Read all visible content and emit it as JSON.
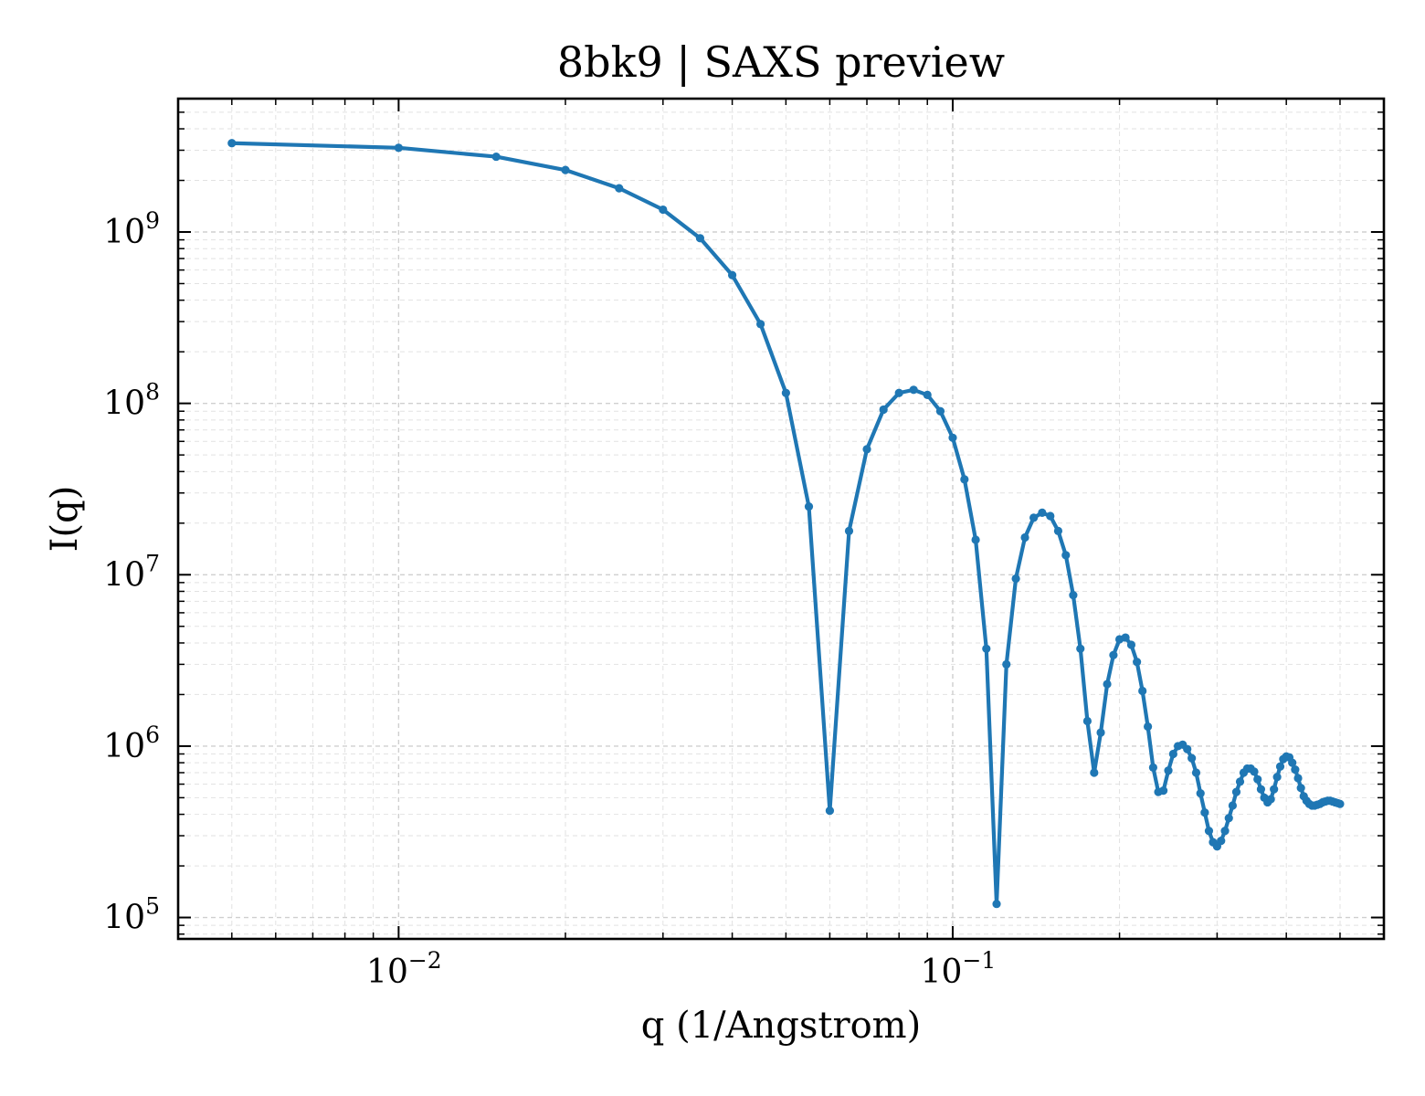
{
  "chart_data": {
    "type": "line",
    "title": "8bk9 | SAXS preview",
    "xlabel": "q (1/Angstrom)",
    "ylabel": "I(q)",
    "xscale": "log",
    "yscale": "log",
    "xlim": [
      0.004,
      0.6
    ],
    "ylim": [
      75000,
      6000000000
    ],
    "x_ticks": [
      {
        "value": 0.01,
        "base": "10",
        "exp": "−2"
      },
      {
        "value": 0.1,
        "base": "10",
        "exp": "−1"
      }
    ],
    "y_ticks": [
      {
        "value": 100000,
        "base": "10",
        "exp": "5"
      },
      {
        "value": 1000000,
        "base": "10",
        "exp": "6"
      },
      {
        "value": 10000000,
        "base": "10",
        "exp": "7"
      },
      {
        "value": 100000000,
        "base": "10",
        "exp": "8"
      },
      {
        "value": 1000000000,
        "base": "10",
        "exp": "9"
      }
    ],
    "grid": true,
    "color": "#1f77b4",
    "series": [
      {
        "x": [
          0.005,
          0.01,
          0.015,
          0.02,
          0.025,
          0.03,
          0.035,
          0.04,
          0.045,
          0.05,
          0.055,
          0.06,
          0.065,
          0.07,
          0.075,
          0.08,
          0.085,
          0.09,
          0.095,
          0.1,
          0.105,
          0.11,
          0.115,
          0.12,
          0.125,
          0.13,
          0.135,
          0.14,
          0.145,
          0.15,
          0.155,
          0.16,
          0.165,
          0.17,
          0.175,
          0.18,
          0.185,
          0.19,
          0.195,
          0.2,
          0.205,
          0.21,
          0.215,
          0.22,
          0.225,
          0.23,
          0.235,
          0.24,
          0.245,
          0.25,
          0.255,
          0.26,
          0.265,
          0.27,
          0.275,
          0.28,
          0.285,
          0.29,
          0.295,
          0.3,
          0.305,
          0.31,
          0.315,
          0.32,
          0.325,
          0.33,
          0.335,
          0.34,
          0.345,
          0.35,
          0.355,
          0.36,
          0.365,
          0.37,
          0.375,
          0.38,
          0.385,
          0.39,
          0.395,
          0.4,
          0.405,
          0.41,
          0.415,
          0.42,
          0.425,
          0.43,
          0.435,
          0.44,
          0.445,
          0.45,
          0.455,
          0.46,
          0.465,
          0.47,
          0.475,
          0.48,
          0.485,
          0.49,
          0.495,
          0.5
        ],
        "y": [
          3300000000,
          3100000000,
          2750000000,
          2300000000,
          1800000000,
          1350000000,
          920000000,
          560000000,
          290000000,
          115000000,
          25000000,
          420000,
          18000000,
          54000000,
          92000000,
          115000000,
          120000000,
          112000000,
          90000000,
          63000000,
          36000000,
          16000000,
          3700000,
          120000,
          3000000,
          9500000,
          16500000,
          21500000,
          23000000,
          22000000,
          18000000,
          13000000,
          7600000,
          3700000,
          1400000,
          700000,
          1200000,
          2300000,
          3400000,
          4200000,
          4300000,
          3900000,
          3100000,
          2100000,
          1300000,
          750000,
          540000,
          550000,
          720000,
          900000,
          1000000,
          1020000,
          960000,
          850000,
          700000,
          530000,
          410000,
          320000,
          275000,
          260000,
          280000,
          320000,
          380000,
          450000,
          540000,
          620000,
          700000,
          740000,
          740000,
          710000,
          640000,
          560000,
          500000,
          470000,
          490000,
          560000,
          660000,
          760000,
          840000,
          870000,
          860000,
          800000,
          730000,
          650000,
          570000,
          510000,
          480000,
          460000,
          450000,
          450000,
          455000,
          460000,
          470000,
          475000,
          480000,
          480000,
          475000,
          470000,
          465000,
          460000
        ]
      }
    ]
  }
}
